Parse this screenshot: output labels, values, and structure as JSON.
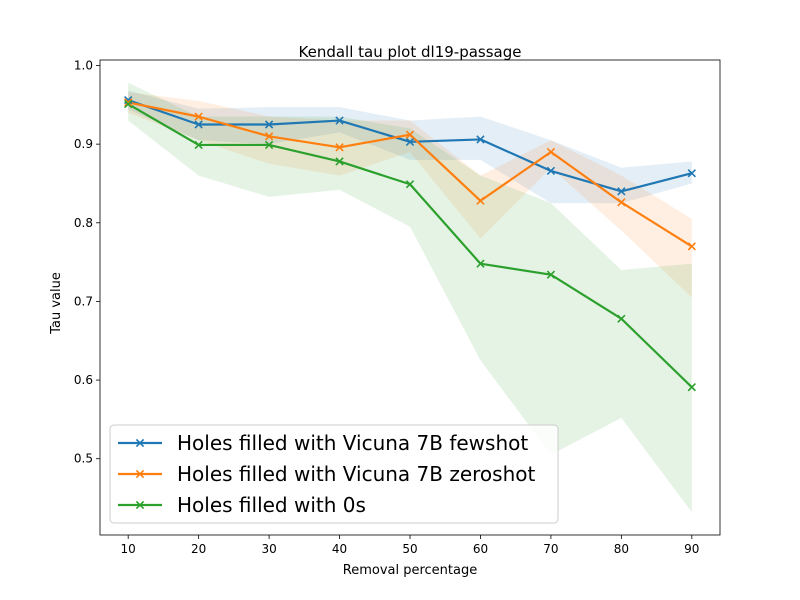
{
  "chart_data": {
    "type": "line",
    "title": "Kendall tau plot dl19-passage",
    "xlabel": "Removal percentage",
    "ylabel": "Tau value",
    "xlim": [
      6,
      94
    ],
    "ylim": [
      0.403,
      1.007
    ],
    "xticks": [
      10,
      20,
      30,
      40,
      50,
      60,
      70,
      80,
      90
    ],
    "yticks": [
      0.5,
      0.6,
      0.7,
      0.8,
      0.9,
      1.0
    ],
    "ytick_labels": [
      "0.5",
      "0.6",
      "0.7",
      "0.8",
      "0.9",
      "1.0"
    ],
    "x": [
      10,
      20,
      30,
      40,
      50,
      60,
      70,
      80,
      90
    ],
    "legend_position": "lower-left",
    "series": [
      {
        "name": "Holes filled with Vicuna 7B fewshot",
        "color": "#1f77b4",
        "values": [
          0.956,
          0.925,
          0.925,
          0.93,
          0.903,
          0.906,
          0.866,
          0.84,
          0.863
        ],
        "lower": [
          0.944,
          0.905,
          0.9,
          0.915,
          0.88,
          0.88,
          0.825,
          0.825,
          0.85
        ],
        "upper": [
          0.968,
          0.945,
          0.947,
          0.947,
          0.93,
          0.935,
          0.905,
          0.87,
          0.878
        ]
      },
      {
        "name": "Holes filled with Vicuna 7B zeroshot",
        "color": "#ff7f0e",
        "values": [
          0.953,
          0.935,
          0.91,
          0.896,
          0.912,
          0.828,
          0.89,
          0.826,
          0.77
        ],
        "lower": [
          0.94,
          0.905,
          0.875,
          0.86,
          0.89,
          0.78,
          0.87,
          0.79,
          0.705
        ],
        "upper": [
          0.966,
          0.955,
          0.935,
          0.93,
          0.93,
          0.86,
          0.905,
          0.86,
          0.805
        ]
      },
      {
        "name": "Holes filled with 0s",
        "color": "#2ca02c",
        "values": [
          0.951,
          0.899,
          0.899,
          0.878,
          0.849,
          0.748,
          0.734,
          0.678,
          0.591
        ],
        "lower": [
          0.93,
          0.86,
          0.833,
          0.842,
          0.795,
          0.625,
          0.505,
          0.552,
          0.432
        ],
        "upper": [
          0.978,
          0.935,
          0.935,
          0.935,
          0.92,
          0.86,
          0.825,
          0.74,
          0.748
        ]
      }
    ]
  }
}
